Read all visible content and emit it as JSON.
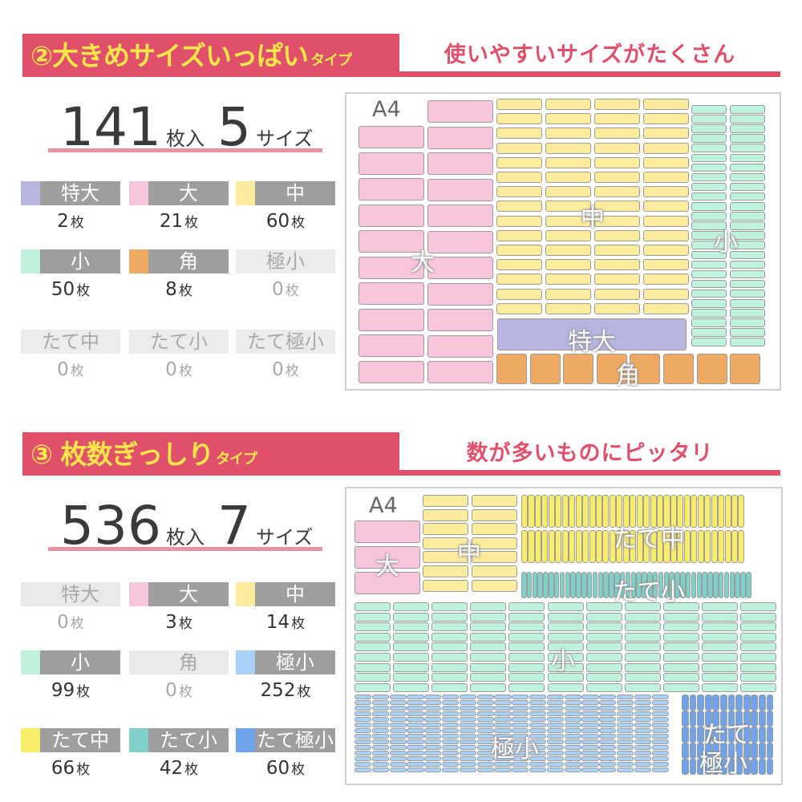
{
  "colors": {
    "pink": "#f9c5dc",
    "yellow": "#fbeb9c",
    "mint": "#bff2dd",
    "lavender": "#b8b5e0",
    "orange": "#f0a865",
    "lightblue": "#a9d0f5",
    "teal": "#7fd0c8",
    "blue": "#6fa4ec",
    "tate_yellow": "#f9ec6a",
    "header": "#e0506b"
  },
  "section2": {
    "title_num": "②",
    "title_main": "大きめサイズいっぱい",
    "title_small": "タイプ",
    "subtitle": "使いやすいサイズがたくさん",
    "total_count": "141",
    "total_unit": "枚入",
    "size_count": "5",
    "size_unit": "サイズ",
    "legend": [
      {
        "label": "特大",
        "count": "2",
        "unit": "枚",
        "color": "#b8b5e0",
        "state": "on"
      },
      {
        "label": "大",
        "count": "21",
        "unit": "枚",
        "color": "#f9c5dc",
        "state": "on"
      },
      {
        "label": "中",
        "count": "60",
        "unit": "枚",
        "color": "#fbeb9c",
        "state": "on"
      },
      {
        "label": "小",
        "count": "50",
        "unit": "枚",
        "color": "#bff2dd",
        "state": "on"
      },
      {
        "label": "角",
        "count": "8",
        "unit": "枚",
        "color": "#f0a865",
        "state": "on"
      },
      {
        "label": "極小",
        "count": "0",
        "unit": "枚",
        "color": "#e9e9e9",
        "state": "noBg"
      },
      {
        "label": "たて中",
        "count": "0",
        "unit": "枚",
        "color": "#e9e9e9",
        "state": "noBg"
      },
      {
        "label": "たて小",
        "count": "0",
        "unit": "枚",
        "color": "#e9e9e9",
        "state": "noBg"
      },
      {
        "label": "たて極小",
        "count": "0",
        "unit": "枚",
        "color": "#e9e9e9",
        "state": "noBg"
      }
    ],
    "diagram": {
      "a4": "A4",
      "labels": {
        "dai": "大",
        "chu": "中",
        "sho": "小",
        "tokudai": "特大",
        "kado": "角"
      }
    }
  },
  "section3": {
    "title_num": "③",
    "title_main": "枚数ぎっしり",
    "title_small": "タイプ",
    "subtitle": "数が多いものにピッタリ",
    "total_count": "536",
    "total_unit": "枚入",
    "size_count": "7",
    "size_unit": "サイズ",
    "legend": [
      {
        "label": "特大",
        "count": "0",
        "unit": "枚",
        "color": "#e9e9e9",
        "state": "off"
      },
      {
        "label": "大",
        "count": "3",
        "unit": "枚",
        "color": "#f9c5dc",
        "state": "on"
      },
      {
        "label": "中",
        "count": "14",
        "unit": "枚",
        "color": "#fbeb9c",
        "state": "on"
      },
      {
        "label": "小",
        "count": "99",
        "unit": "枚",
        "color": "#bff2dd",
        "state": "on"
      },
      {
        "label": "角",
        "count": "0",
        "unit": "枚",
        "color": "#e9e9e9",
        "state": "off"
      },
      {
        "label": "極小",
        "count": "252",
        "unit": "枚",
        "color": "#a9d0f5",
        "state": "on"
      },
      {
        "label": "たて中",
        "count": "66",
        "unit": "枚",
        "color": "#f9ec6a",
        "state": "on"
      },
      {
        "label": "たて小",
        "count": "42",
        "unit": "枚",
        "color": "#7fd0c8",
        "state": "on"
      },
      {
        "label": "たて極小",
        "count": "60",
        "unit": "枚",
        "color": "#6fa4ec",
        "state": "on"
      }
    ],
    "diagram": {
      "a4": "A4",
      "labels": {
        "dai": "大",
        "chu": "中",
        "tatechu": "たて中",
        "tatesho": "たて小",
        "sho": "小",
        "gokusho": "極小",
        "tategokusho_1": "たて",
        "tategokusho_2": "極小"
      }
    }
  }
}
